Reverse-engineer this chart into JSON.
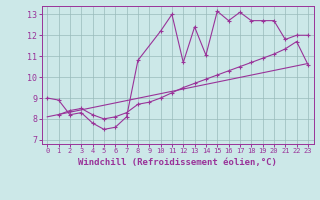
{
  "xlabel": "Windchill (Refroidissement éolien,°C)",
  "xlim": [
    -0.5,
    23.5
  ],
  "ylim": [
    6.8,
    13.4
  ],
  "yticks": [
    7,
    8,
    9,
    10,
    11,
    12,
    13
  ],
  "xticks": [
    0,
    1,
    2,
    3,
    4,
    5,
    6,
    7,
    8,
    9,
    10,
    11,
    12,
    13,
    14,
    15,
    16,
    17,
    18,
    19,
    20,
    21,
    22,
    23
  ],
  "bg_color": "#cce8e8",
  "line_color": "#993399",
  "grid_color": "#99bbbb",
  "line1_x": [
    0,
    1,
    2,
    3,
    4,
    5,
    6,
    7,
    8,
    10,
    11,
    12,
    13,
    14,
    15,
    16,
    17,
    18,
    19,
    20,
    21,
    22,
    23
  ],
  "line1_y": [
    9.0,
    8.9,
    8.2,
    8.3,
    7.8,
    7.5,
    7.6,
    8.1,
    10.8,
    12.2,
    13.0,
    10.7,
    12.4,
    11.05,
    13.15,
    12.7,
    13.1,
    12.7,
    12.7,
    12.7,
    11.8,
    12.0,
    12.0
  ],
  "line2_x": [
    1,
    2,
    3,
    4,
    5,
    6,
    7,
    8,
    9,
    10,
    11,
    12,
    13,
    14,
    15,
    16,
    17,
    18,
    19,
    20,
    21,
    22,
    23
  ],
  "line2_y": [
    8.2,
    8.4,
    8.5,
    8.2,
    8.0,
    8.1,
    8.3,
    8.7,
    8.8,
    9.0,
    9.25,
    9.5,
    9.7,
    9.9,
    10.1,
    10.3,
    10.5,
    10.7,
    10.9,
    11.1,
    11.35,
    11.7,
    10.6
  ],
  "line3_x": [
    0,
    23
  ],
  "line3_y": [
    8.1,
    10.65
  ]
}
